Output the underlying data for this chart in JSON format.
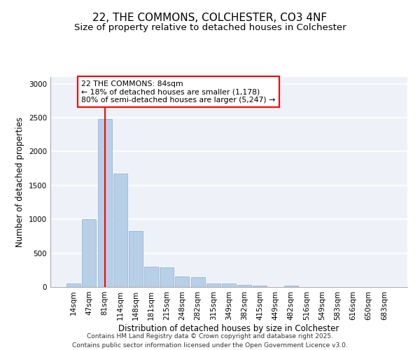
{
  "title_line1": "22, THE COMMONS, COLCHESTER, CO3 4NF",
  "title_line2": "Size of property relative to detached houses in Colchester",
  "xlabel": "Distribution of detached houses by size in Colchester",
  "ylabel": "Number of detached properties",
  "footnote": "Contains HM Land Registry data © Crown copyright and database right 2025.\nContains public sector information licensed under the Open Government Licence v3.0.",
  "categories": [
    "14sqm",
    "47sqm",
    "81sqm",
    "114sqm",
    "148sqm",
    "181sqm",
    "215sqm",
    "248sqm",
    "282sqm",
    "315sqm",
    "349sqm",
    "382sqm",
    "415sqm",
    "449sqm",
    "482sqm",
    "516sqm",
    "549sqm",
    "583sqm",
    "616sqm",
    "650sqm",
    "683sqm"
  ],
  "values": [
    50,
    1000,
    2480,
    1670,
    830,
    300,
    290,
    150,
    145,
    55,
    50,
    30,
    20,
    0,
    18,
    0,
    0,
    0,
    0,
    0,
    0
  ],
  "bar_color": "#b8cfe8",
  "bar_edge_color": "#8aaed4",
  "vline_x": 2,
  "vline_color": "red",
  "annotation_text": "22 THE COMMONS: 84sqm\n← 18% of detached houses are smaller (1,178)\n80% of semi-detached houses are larger (5,247) →",
  "annotation_box_color": "white",
  "annotation_box_edge_color": "red",
  "ylim": [
    0,
    3100
  ],
  "yticks": [
    0,
    500,
    1000,
    1500,
    2000,
    2500,
    3000
  ],
  "background_color": "#eef2f8",
  "grid_color": "white",
  "title_fontsize": 11,
  "subtitle_fontsize": 9.5,
  "axis_label_fontsize": 8.5,
  "tick_fontsize": 7.5,
  "annotation_fontsize": 7.8,
  "footnote_fontsize": 6.5
}
